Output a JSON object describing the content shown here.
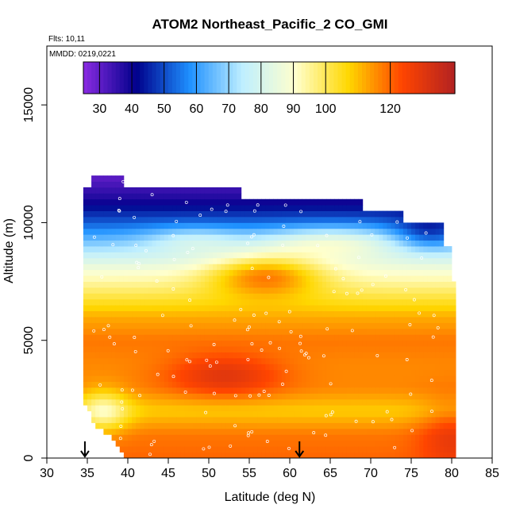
{
  "chart_data": {
    "type": "heatmap",
    "title": "ATOM2 Northeast_Pacific_2 CO_GMI",
    "notes": {
      "flights": "Flts: 10,11",
      "dates": "MMDD: 0219,0221"
    },
    "xlabel": "Latitude (deg N)",
    "ylabel": "Altitude (m)",
    "xlim": [
      30,
      85
    ],
    "ylim": [
      0,
      17500
    ],
    "x_ticks": [
      "30",
      "35",
      "40",
      "45",
      "50",
      "55",
      "60",
      "65",
      "70",
      "75",
      "80",
      "85"
    ],
    "x_tick_values": [
      30,
      35,
      40,
      45,
      50,
      55,
      60,
      65,
      70,
      75,
      80,
      85
    ],
    "y_ticks": [
      "0",
      "5000",
      "10000",
      "15000"
    ],
    "y_tick_values": [
      0,
      5000,
      10000,
      15000
    ],
    "colorbar": {
      "range": [
        25,
        140
      ],
      "ticks": [
        "30",
        "40",
        "50",
        "60",
        "70",
        "80",
        "90",
        "100",
        "120"
      ],
      "tick_values": [
        30,
        40,
        50,
        60,
        70,
        80,
        90,
        100,
        120
      ],
      "stops": [
        "#8a2be2",
        "#00008b",
        "#1e90ff",
        "#bfefff",
        "#ffffcc",
        "#ffd700",
        "#ff4500",
        "#b22222"
      ]
    },
    "arrows": [
      {
        "latitude": 34.7
      },
      {
        "latitude": 61.2
      }
    ],
    "field": {
      "lat_extent": [
        34.5,
        80.5
      ],
      "top_profile": [
        [
          34.5,
          11500
        ],
        [
          35.5,
          12000
        ],
        [
          39.5,
          12000
        ],
        [
          39.5,
          11500
        ],
        [
          54,
          11500
        ],
        [
          54,
          11000
        ],
        [
          69,
          11000
        ],
        [
          69,
          10500
        ],
        [
          74,
          10500
        ],
        [
          74,
          10000
        ],
        [
          79,
          10000
        ],
        [
          79,
          9000
        ],
        [
          80,
          9000
        ],
        [
          80,
          7500
        ],
        [
          80.5,
          7500
        ],
        [
          80.5,
          5000
        ]
      ],
      "bottom_profile": [
        [
          34.5,
          2500
        ],
        [
          36,
          1500
        ],
        [
          38,
          1000
        ],
        [
          39,
          500
        ],
        [
          40,
          0
        ],
        [
          80.5,
          0
        ]
      ],
      "profile": [
        [
          0,
          120
        ],
        [
          1000,
          118
        ],
        [
          2000,
          108
        ],
        [
          3000,
          116
        ],
        [
          4000,
          116
        ],
        [
          5000,
          118
        ],
        [
          6000,
          112
        ],
        [
          7000,
          100
        ],
        [
          8000,
          88
        ],
        [
          9000,
          70
        ],
        [
          10000,
          52
        ],
        [
          11000,
          38
        ],
        [
          12000,
          30
        ]
      ],
      "anomalies": [
        {
          "lat": 52,
          "alt": 3500,
          "d_lat": 7,
          "d_alt": 900,
          "delta": 14
        },
        {
          "lat": 57,
          "alt": 7800,
          "d_lat": 7,
          "d_alt": 900,
          "delta": 26
        },
        {
          "lat": 65,
          "alt": 9200,
          "d_lat": 9,
          "d_alt": 700,
          "delta": 20
        },
        {
          "lat": 37,
          "alt": 2000,
          "d_lat": 3,
          "d_alt": 900,
          "delta": -18
        },
        {
          "lat": 48,
          "alt": 9300,
          "d_lat": 6,
          "d_alt": 600,
          "delta": 12
        },
        {
          "lat": 77,
          "alt": 9500,
          "d_lat": 4,
          "d_alt": 700,
          "delta": -14
        },
        {
          "lat": 80,
          "alt": 1000,
          "d_lat": 4,
          "d_alt": 1500,
          "delta": 10
        }
      ]
    }
  }
}
